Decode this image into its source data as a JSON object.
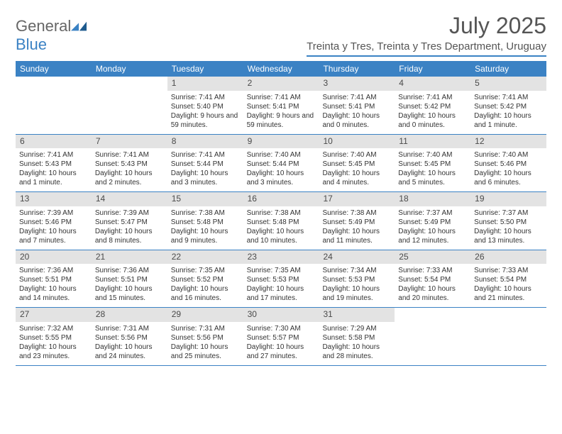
{
  "logo": {
    "part1": "General",
    "part2": "Blue"
  },
  "title": "July 2025",
  "location": "Treinta y Tres, Treinta y Tres Department, Uruguay",
  "dayHeaders": [
    "Sunday",
    "Monday",
    "Tuesday",
    "Wednesday",
    "Thursday",
    "Friday",
    "Saturday"
  ],
  "colors": {
    "accent": "#3b82c4",
    "headerText": "#ffffff",
    "dayNumBg": "#e3e3e3",
    "text": "#333333"
  },
  "weeks": [
    [
      null,
      null,
      {
        "n": "1",
        "sr": "Sunrise: 7:41 AM",
        "ss": "Sunset: 5:40 PM",
        "dl": "Daylight: 9 hours and 59 minutes."
      },
      {
        "n": "2",
        "sr": "Sunrise: 7:41 AM",
        "ss": "Sunset: 5:41 PM",
        "dl": "Daylight: 9 hours and 59 minutes."
      },
      {
        "n": "3",
        "sr": "Sunrise: 7:41 AM",
        "ss": "Sunset: 5:41 PM",
        "dl": "Daylight: 10 hours and 0 minutes."
      },
      {
        "n": "4",
        "sr": "Sunrise: 7:41 AM",
        "ss": "Sunset: 5:42 PM",
        "dl": "Daylight: 10 hours and 0 minutes."
      },
      {
        "n": "5",
        "sr": "Sunrise: 7:41 AM",
        "ss": "Sunset: 5:42 PM",
        "dl": "Daylight: 10 hours and 1 minute."
      }
    ],
    [
      {
        "n": "6",
        "sr": "Sunrise: 7:41 AM",
        "ss": "Sunset: 5:43 PM",
        "dl": "Daylight: 10 hours and 1 minute."
      },
      {
        "n": "7",
        "sr": "Sunrise: 7:41 AM",
        "ss": "Sunset: 5:43 PM",
        "dl": "Daylight: 10 hours and 2 minutes."
      },
      {
        "n": "8",
        "sr": "Sunrise: 7:41 AM",
        "ss": "Sunset: 5:44 PM",
        "dl": "Daylight: 10 hours and 3 minutes."
      },
      {
        "n": "9",
        "sr": "Sunrise: 7:40 AM",
        "ss": "Sunset: 5:44 PM",
        "dl": "Daylight: 10 hours and 3 minutes."
      },
      {
        "n": "10",
        "sr": "Sunrise: 7:40 AM",
        "ss": "Sunset: 5:45 PM",
        "dl": "Daylight: 10 hours and 4 minutes."
      },
      {
        "n": "11",
        "sr": "Sunrise: 7:40 AM",
        "ss": "Sunset: 5:45 PM",
        "dl": "Daylight: 10 hours and 5 minutes."
      },
      {
        "n": "12",
        "sr": "Sunrise: 7:40 AM",
        "ss": "Sunset: 5:46 PM",
        "dl": "Daylight: 10 hours and 6 minutes."
      }
    ],
    [
      {
        "n": "13",
        "sr": "Sunrise: 7:39 AM",
        "ss": "Sunset: 5:46 PM",
        "dl": "Daylight: 10 hours and 7 minutes."
      },
      {
        "n": "14",
        "sr": "Sunrise: 7:39 AM",
        "ss": "Sunset: 5:47 PM",
        "dl": "Daylight: 10 hours and 8 minutes."
      },
      {
        "n": "15",
        "sr": "Sunrise: 7:38 AM",
        "ss": "Sunset: 5:48 PM",
        "dl": "Daylight: 10 hours and 9 minutes."
      },
      {
        "n": "16",
        "sr": "Sunrise: 7:38 AM",
        "ss": "Sunset: 5:48 PM",
        "dl": "Daylight: 10 hours and 10 minutes."
      },
      {
        "n": "17",
        "sr": "Sunrise: 7:38 AM",
        "ss": "Sunset: 5:49 PM",
        "dl": "Daylight: 10 hours and 11 minutes."
      },
      {
        "n": "18",
        "sr": "Sunrise: 7:37 AM",
        "ss": "Sunset: 5:49 PM",
        "dl": "Daylight: 10 hours and 12 minutes."
      },
      {
        "n": "19",
        "sr": "Sunrise: 7:37 AM",
        "ss": "Sunset: 5:50 PM",
        "dl": "Daylight: 10 hours and 13 minutes."
      }
    ],
    [
      {
        "n": "20",
        "sr": "Sunrise: 7:36 AM",
        "ss": "Sunset: 5:51 PM",
        "dl": "Daylight: 10 hours and 14 minutes."
      },
      {
        "n": "21",
        "sr": "Sunrise: 7:36 AM",
        "ss": "Sunset: 5:51 PM",
        "dl": "Daylight: 10 hours and 15 minutes."
      },
      {
        "n": "22",
        "sr": "Sunrise: 7:35 AM",
        "ss": "Sunset: 5:52 PM",
        "dl": "Daylight: 10 hours and 16 minutes."
      },
      {
        "n": "23",
        "sr": "Sunrise: 7:35 AM",
        "ss": "Sunset: 5:53 PM",
        "dl": "Daylight: 10 hours and 17 minutes."
      },
      {
        "n": "24",
        "sr": "Sunrise: 7:34 AM",
        "ss": "Sunset: 5:53 PM",
        "dl": "Daylight: 10 hours and 19 minutes."
      },
      {
        "n": "25",
        "sr": "Sunrise: 7:33 AM",
        "ss": "Sunset: 5:54 PM",
        "dl": "Daylight: 10 hours and 20 minutes."
      },
      {
        "n": "26",
        "sr": "Sunrise: 7:33 AM",
        "ss": "Sunset: 5:54 PM",
        "dl": "Daylight: 10 hours and 21 minutes."
      }
    ],
    [
      {
        "n": "27",
        "sr": "Sunrise: 7:32 AM",
        "ss": "Sunset: 5:55 PM",
        "dl": "Daylight: 10 hours and 23 minutes."
      },
      {
        "n": "28",
        "sr": "Sunrise: 7:31 AM",
        "ss": "Sunset: 5:56 PM",
        "dl": "Daylight: 10 hours and 24 minutes."
      },
      {
        "n": "29",
        "sr": "Sunrise: 7:31 AM",
        "ss": "Sunset: 5:56 PM",
        "dl": "Daylight: 10 hours and 25 minutes."
      },
      {
        "n": "30",
        "sr": "Sunrise: 7:30 AM",
        "ss": "Sunset: 5:57 PM",
        "dl": "Daylight: 10 hours and 27 minutes."
      },
      {
        "n": "31",
        "sr": "Sunrise: 7:29 AM",
        "ss": "Sunset: 5:58 PM",
        "dl": "Daylight: 10 hours and 28 minutes."
      },
      null,
      null
    ]
  ]
}
